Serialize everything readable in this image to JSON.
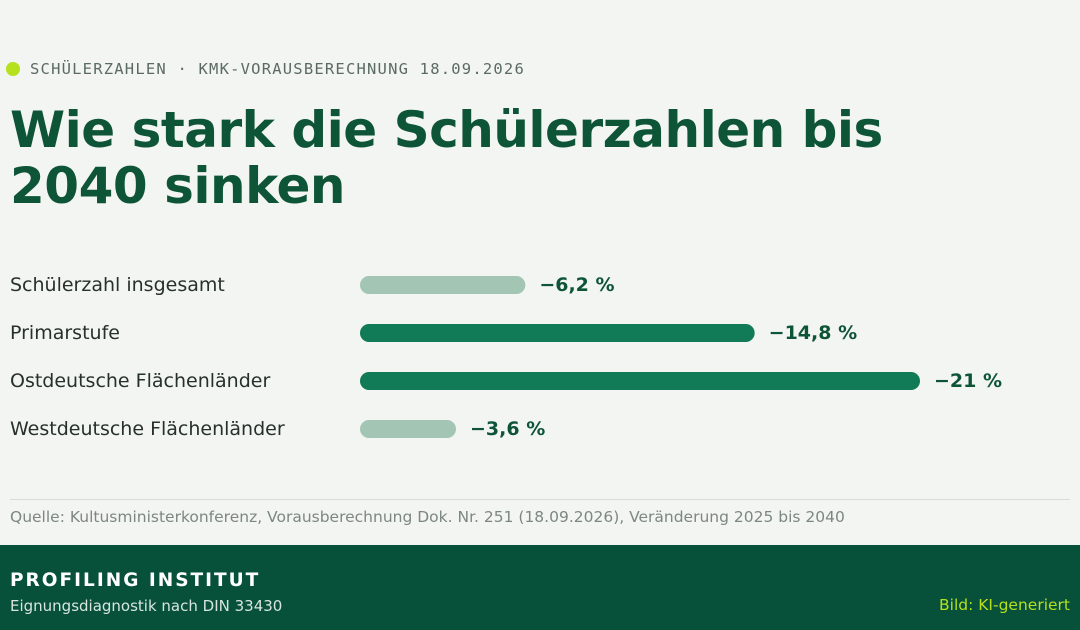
{
  "header": {
    "kicker": "SCHÜLERZAHLEN · KMK-VORAUSBERECHNUNG 18.09.2026",
    "title": "Wie stark die Schülerzahlen bis 2040 sinken"
  },
  "chart_data": {
    "type": "bar",
    "orientation": "horizontal",
    "categories": [
      "Schülerzahl insgesamt",
      "Primarstufe",
      "Ostdeutsche Flächenländer",
      "Westdeutsche Flächenländer"
    ],
    "values": [
      -6.2,
      -14.8,
      -21,
      -3.6
    ],
    "value_labels": [
      "−6,2 %",
      "−14,8 %",
      "−21 %",
      "−3,6 %"
    ],
    "highlighted": [
      false,
      true,
      true,
      false
    ],
    "xlim": [
      0,
      -21
    ],
    "grid": false,
    "colors": {
      "highlight": "#117a56",
      "muted": "#a3c5b4",
      "label": "#0e5437",
      "category": "#26302c"
    }
  },
  "source": "Quelle: Kultusministerkonferenz, Vorausberechnung Dok. Nr. 251 (18.09.2026), Veränderung 2025 bis 2040",
  "footer": {
    "brand": "PROFILING INSTITUT",
    "subtitle": "Eignungsdiagnostik nach DIN 33430",
    "credit": "Bild: KI-generiert"
  }
}
